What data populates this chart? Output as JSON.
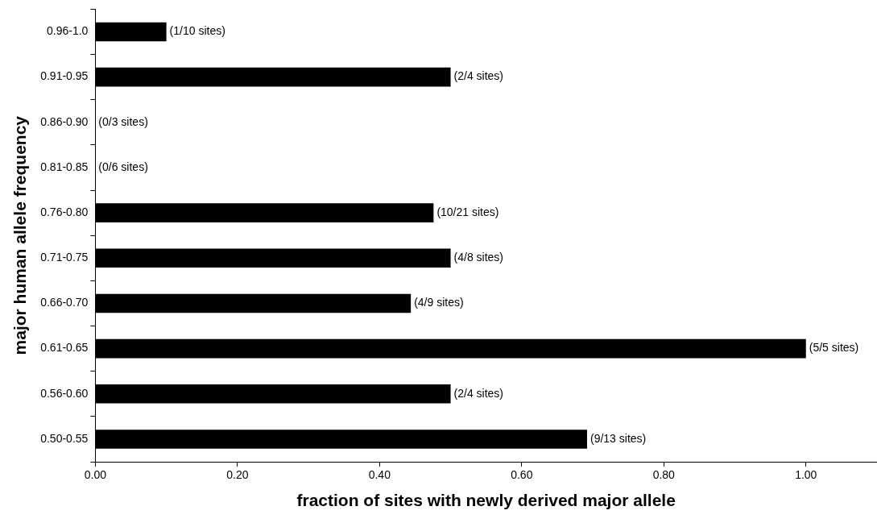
{
  "chart_data": {
    "type": "bar",
    "orientation": "horizontal",
    "xlabel": "fraction of sites with newly derived major allele",
    "ylabel": "major human allele frequency",
    "categories": [
      "0.96-1.0",
      "0.91-0.95",
      "0.86-0.90",
      "0.81-0.85",
      "0.76-0.80",
      "0.71-0.75",
      "0.66-0.70",
      "0.61-0.65",
      "0.56-0.60",
      "0.50-0.55"
    ],
    "values": [
      0.1,
      0.5,
      0,
      0,
      0.476,
      0.5,
      0.444,
      1.0,
      0.5,
      0.692
    ],
    "value_labels": [
      "(1/10 sites)",
      "(2/4 sites)",
      "(0/3 sites)",
      "(0/6 sites)",
      "(10/21 sites)",
      "(4/8 sites)",
      "(4/9 sites)",
      "(5/5 sites)",
      "(2/4 sites)",
      "(9/13 sites)"
    ],
    "color": "#000000",
    "xlim": [
      0,
      1.1
    ],
    "xticks": [
      {
        "value": 0,
        "label": "0.00"
      },
      {
        "value": 0.2,
        "label": "0.20"
      },
      {
        "value": 0.4,
        "label": "0.40"
      },
      {
        "value": 0.6,
        "label": "0.60"
      },
      {
        "value": 0.8,
        "label": "0.80"
      },
      {
        "value": 1.0,
        "label": "1.00"
      }
    ],
    "grid": false,
    "legend": false
  }
}
